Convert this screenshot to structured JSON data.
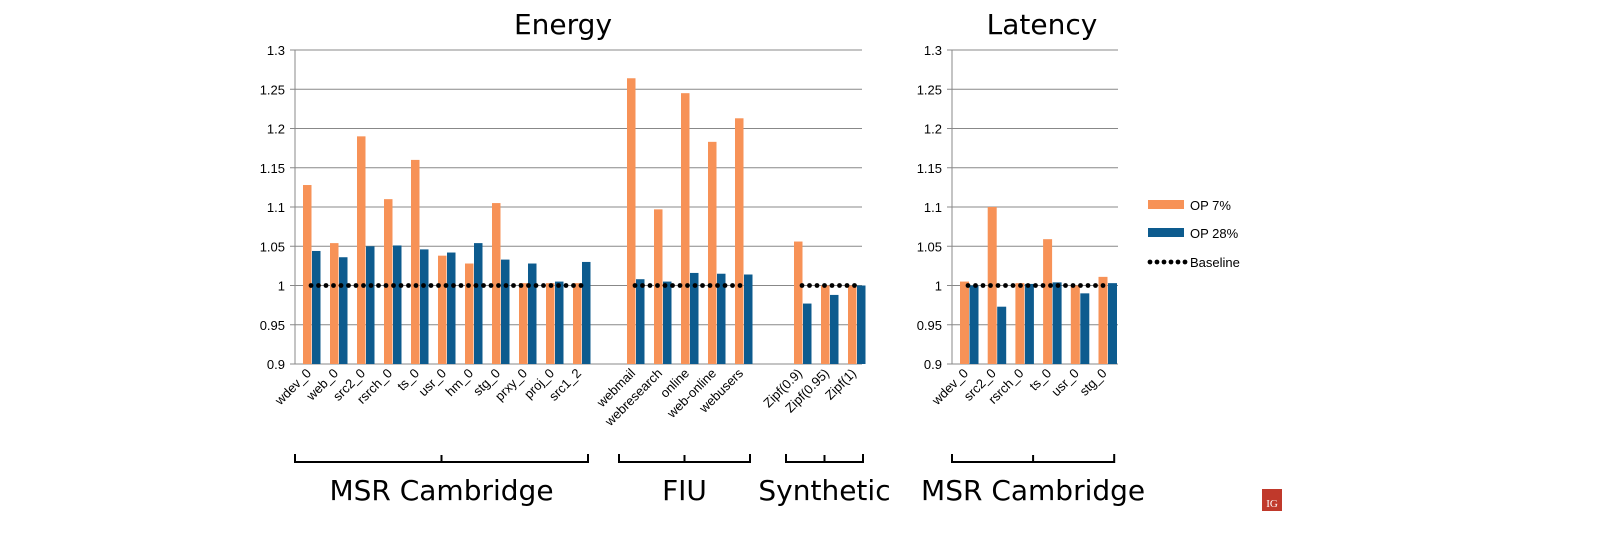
{
  "legend": [
    {
      "label": "OP 7%",
      "color": "#F79257",
      "kind": "bar"
    },
    {
      "label": "OP 28%",
      "color": "#0D5B8E",
      "kind": "bar"
    },
    {
      "label": "Baseline",
      "color": "#000000",
      "kind": "dots"
    }
  ],
  "logo_text": "IG",
  "chart_data": [
    {
      "type": "bar",
      "title": "Energy",
      "ylim": [
        0.9,
        1.3
      ],
      "yticks": [
        "0.9",
        "0.95",
        "1",
        "1.05",
        "1.1",
        "1.15",
        "1.2",
        "1.25",
        "1.3"
      ],
      "baseline": 1.0,
      "groups": [
        {
          "label": "MSR Cambridge",
          "categories": [
            "wdev_0",
            "web_0",
            "src2_0",
            "rsrch_0",
            "ts_0",
            "usr_0",
            "hm_0",
            "stg_0",
            "prxy_0",
            "proj_0",
            "src1_2"
          ]
        },
        {
          "label": "FIU",
          "categories": [
            "webmail",
            "webresearch",
            "online",
            "web-online",
            "webusers"
          ]
        },
        {
          "label": "Synthetic",
          "categories": [
            "Zipf(0.9)",
            "Zipf(0.95)",
            "Zipf(1)"
          ]
        }
      ],
      "series": [
        {
          "name": "OP 7%",
          "values": [
            1.128,
            1.054,
            1.19,
            1.11,
            1.16,
            1.038,
            1.028,
            1.105,
            1.003,
            1.003,
            1.003,
            1.264,
            1.097,
            1.245,
            1.183,
            1.213,
            1.056,
            1.0,
            1.0
          ]
        },
        {
          "name": "OP 28%",
          "values": [
            1.044,
            1.036,
            1.05,
            1.051,
            1.046,
            1.042,
            1.054,
            1.033,
            1.028,
            1.005,
            1.03,
            1.008,
            1.005,
            1.016,
            1.015,
            1.014,
            0.977,
            0.988,
            1.0
          ]
        }
      ]
    },
    {
      "type": "bar",
      "title": "Latency",
      "ylim": [
        0.9,
        1.3
      ],
      "yticks": [
        "0.9",
        "0.95",
        "1",
        "1.05",
        "1.1",
        "1.15",
        "1.2",
        "1.25",
        "1.3"
      ],
      "baseline": 1.0,
      "groups": [
        {
          "label": "MSR Cambridge",
          "categories": [
            "wdev_0",
            "src2_0",
            "rsrch_0",
            "ts_0",
            "usr_0",
            "stg_0"
          ]
        }
      ],
      "series": [
        {
          "name": "OP 7%",
          "values": [
            1.005,
            1.1,
            1.003,
            1.059,
            1.0,
            1.011
          ]
        },
        {
          "name": "OP 28%",
          "values": [
            1.0,
            0.973,
            1.002,
            1.004,
            0.99,
            1.003
          ]
        }
      ]
    }
  ]
}
